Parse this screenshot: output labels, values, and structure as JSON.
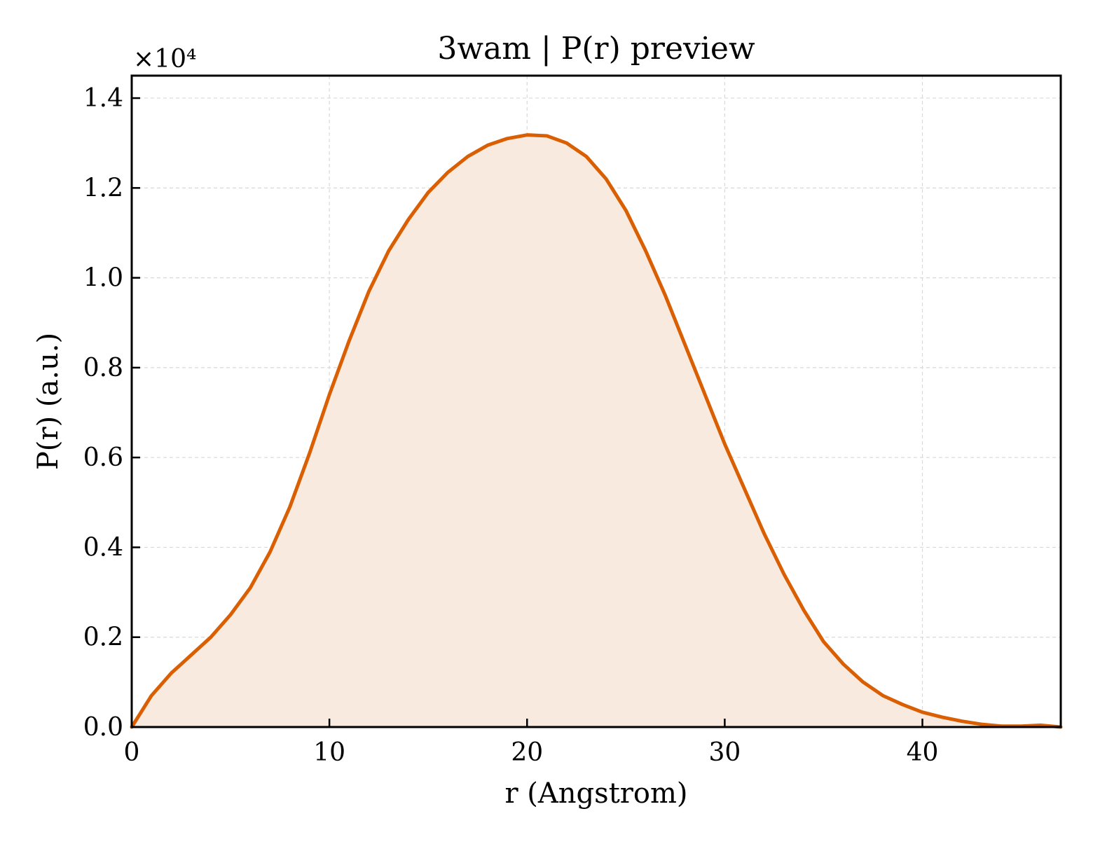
{
  "chart_data": {
    "type": "area",
    "title": "3wam | P(r) preview",
    "xlabel": "r (Angstrom)",
    "ylabel": "P(r) (a.u.)",
    "y_offset_label": "×10⁴",
    "y_multiplier": 10000,
    "xlim": [
      0,
      47
    ],
    "ylim": [
      0,
      1.45
    ],
    "xticks": [
      0,
      10,
      20,
      30,
      40
    ],
    "xtick_labels": [
      "0",
      "10",
      "20",
      "30",
      "40"
    ],
    "yticks": [
      0.0,
      0.2,
      0.4,
      0.6,
      0.8,
      1.0,
      1.2,
      1.4
    ],
    "ytick_labels": [
      "0.0",
      "0.2",
      "0.4",
      "0.6",
      "0.8",
      "1.0",
      "1.2",
      "1.4"
    ],
    "grid": true,
    "legend": "none",
    "colors": {
      "line": "#d95f02",
      "fill": "#f8eadf",
      "grid": "#d9d9d9",
      "axes": "#000000"
    },
    "series": [
      {
        "x": [
          0,
          1,
          2,
          3,
          4,
          5,
          6,
          7,
          8,
          9,
          10,
          11,
          12,
          13,
          14,
          15,
          16,
          17,
          18,
          19,
          20,
          21,
          22,
          23,
          24,
          25,
          26,
          27,
          28,
          29,
          30,
          31,
          32,
          33,
          34,
          35,
          36,
          37,
          38,
          39,
          40,
          41,
          42,
          43,
          44,
          45,
          46,
          47
        ],
        "y": [
          0.0,
          0.07,
          0.12,
          0.16,
          0.2,
          0.25,
          0.31,
          0.39,
          0.49,
          0.61,
          0.74,
          0.86,
          0.97,
          1.06,
          1.13,
          1.19,
          1.235,
          1.27,
          1.295,
          1.31,
          1.318,
          1.316,
          1.3,
          1.27,
          1.22,
          1.15,
          1.06,
          0.96,
          0.85,
          0.74,
          0.63,
          0.53,
          0.43,
          0.34,
          0.26,
          0.19,
          0.14,
          0.1,
          0.07,
          0.05,
          0.033,
          0.022,
          0.013,
          0.006,
          0.002,
          0.002,
          0.004,
          0.0
        ]
      }
    ]
  }
}
